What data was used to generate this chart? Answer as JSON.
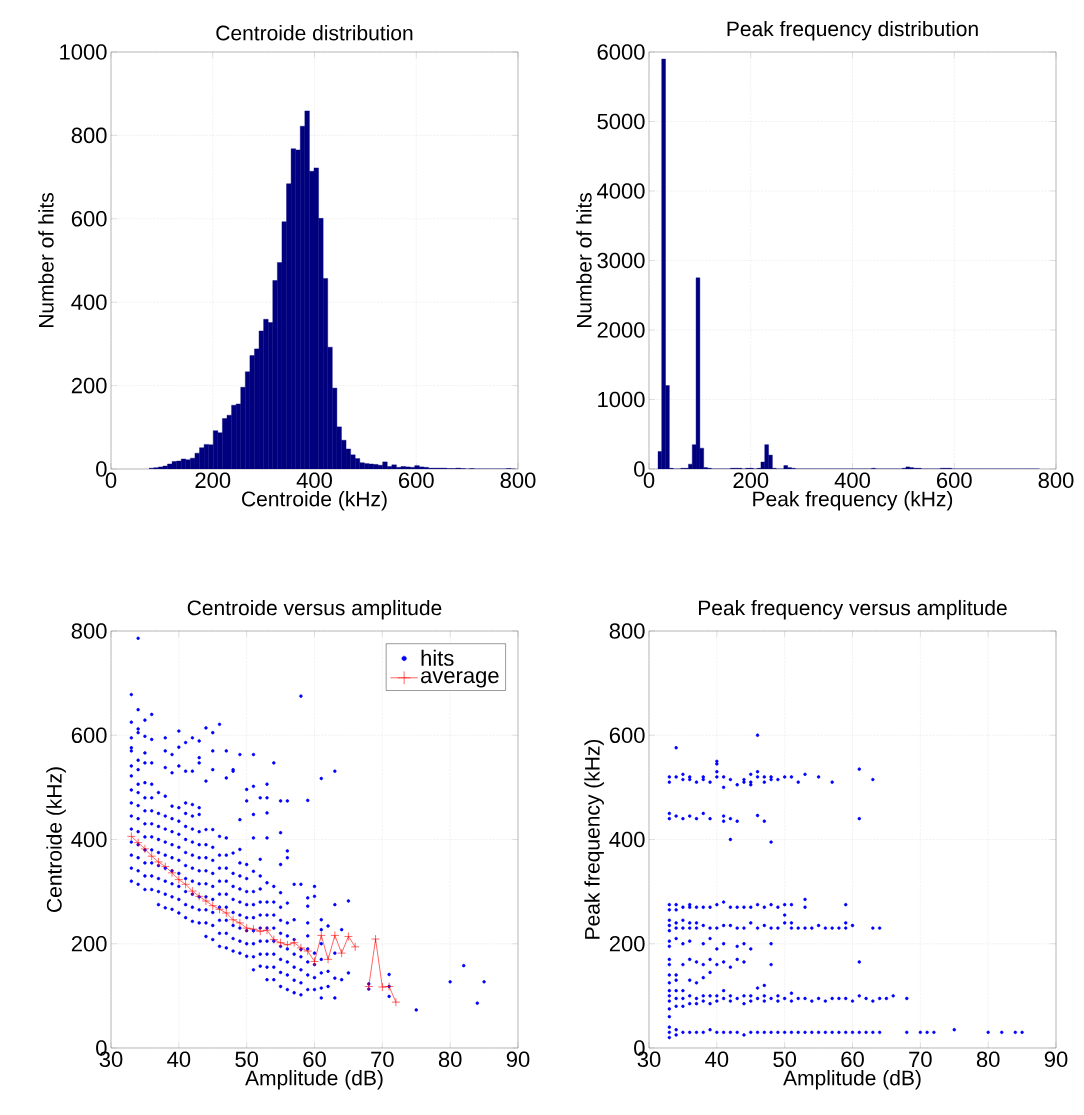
{
  "chart_data": [
    {
      "type": "histogram",
      "title": "Centroide distribution",
      "xlabel": "Centroide (kHz)",
      "ylabel": "Number of hits",
      "color": "#00007f",
      "bins": [
        75,
        84,
        93,
        102,
        111,
        120,
        129,
        138,
        147,
        156,
        165,
        174,
        183,
        192,
        201,
        210,
        219,
        228,
        237,
        246,
        255,
        264,
        273,
        282,
        291,
        300,
        309,
        318,
        327,
        336,
        345,
        354,
        363,
        372,
        381,
        390,
        399,
        408,
        417,
        426,
        435,
        444,
        453,
        462,
        471,
        480,
        489,
        498,
        507,
        516,
        525,
        534,
        543,
        552,
        561,
        570,
        579,
        588,
        597,
        606,
        615,
        624,
        633,
        642,
        651,
        660,
        669,
        678,
        687,
        696,
        705,
        714,
        723,
        732,
        741,
        750,
        759,
        768,
        777,
        786,
        795
      ],
      "values": [
        2,
        3,
        5,
        7,
        12,
        18,
        19,
        24,
        22,
        26,
        38,
        51,
        59,
        58,
        92,
        87,
        121,
        129,
        153,
        156,
        196,
        233,
        272,
        288,
        331,
        359,
        351,
        452,
        495,
        593,
        684,
        768,
        765,
        822,
        859,
        714,
        722,
        601,
        457,
        292,
        194,
        101,
        69,
        48,
        34,
        25,
        15,
        13,
        12,
        11,
        9,
        17,
        6,
        10,
        4,
        6,
        5,
        4,
        8,
        5,
        4,
        2,
        2,
        2,
        2,
        1,
        1,
        2,
        1,
        0,
        1,
        0,
        0,
        0,
        0,
        0,
        0,
        0,
        1,
        0
      ],
      "xlim": [
        0,
        800
      ],
      "ylim": [
        0,
        1000
      ],
      "xticks": [
        0,
        200,
        400,
        600,
        800
      ],
      "yticks": [
        0,
        200,
        400,
        600,
        800,
        1000
      ],
      "grid": true
    },
    {
      "type": "histogram",
      "title": "Peak frequency distribution",
      "xlabel": "Peak frequency (kHz)",
      "ylabel": "Number of hits",
      "color": "#00007f",
      "bins": [
        17.5,
        25,
        32.5,
        40,
        47.5,
        55,
        62.5,
        70,
        77.5,
        85,
        92.5,
        100,
        107.5,
        115,
        122.5,
        130,
        137.5,
        145,
        152.5,
        160,
        167.5,
        175,
        182.5,
        190,
        197.5,
        205,
        212.5,
        220,
        227.5,
        235,
        242.5,
        250,
        257.5,
        265,
        272.5,
        280,
        287.5,
        295,
        302.5,
        310,
        317.5,
        325,
        332.5,
        340,
        347.5,
        355,
        362.5,
        370,
        377.5,
        385,
        392.5,
        400,
        407.5,
        415,
        422.5,
        430,
        437.5,
        445,
        452.5,
        460,
        467.5,
        475,
        482.5,
        490,
        497.5,
        505,
        512.5,
        520,
        527.5,
        535,
        542.5,
        550,
        557.5,
        565,
        572.5,
        580,
        587.5,
        595,
        602.5,
        610,
        617.5,
        625,
        632.5,
        640,
        647.5,
        655,
        662.5,
        670,
        677.5,
        685,
        692.5,
        700,
        707.5,
        715,
        722.5,
        730,
        737.5,
        745,
        752.5,
        760,
        767.5
      ],
      "values": [
        250,
        5900,
        1200,
        10,
        0,
        0,
        10,
        10,
        70,
        350,
        2750,
        300,
        20,
        10,
        0,
        0,
        0,
        0,
        0,
        10,
        10,
        10,
        0,
        10,
        10,
        0,
        10,
        100,
        350,
        200,
        10,
        0,
        0,
        50,
        20,
        10,
        0,
        0,
        0,
        0,
        0,
        0,
        0,
        0,
        0,
        0,
        0,
        0,
        0,
        0,
        0,
        0,
        0,
        0,
        0,
        0,
        10,
        0,
        0,
        0,
        0,
        0,
        0,
        0,
        10,
        30,
        20,
        10,
        10,
        0,
        0,
        0,
        0,
        0,
        10,
        10,
        10,
        0,
        0,
        0,
        0,
        0,
        0,
        0,
        0,
        0,
        0,
        0,
        0,
        0,
        0,
        0,
        0,
        0,
        0,
        0,
        0,
        0,
        0,
        0
      ],
      "xlim": [
        0,
        800
      ],
      "ylim": [
        0,
        6000
      ],
      "xticks": [
        0,
        200,
        400,
        600,
        800
      ],
      "yticks": [
        0,
        1000,
        2000,
        3000,
        4000,
        5000,
        6000
      ],
      "grid": true
    },
    {
      "type": "scatter",
      "title": "Centroide versus amplitude",
      "xlabel": "Amplitude (dB)",
      "ylabel": "Centroide (kHz)",
      "xlim": [
        30,
        90
      ],
      "ylim": [
        0,
        800
      ],
      "xticks": [
        30,
        40,
        50,
        60,
        70,
        80,
        90
      ],
      "yticks": [
        0,
        200,
        400,
        600,
        800
      ],
      "grid": true,
      "legend": "top right",
      "series": [
        {
          "name": "hits",
          "type": "scatter",
          "color": "#0000ff",
          "marker": "circle",
          "x": [
            33,
            33,
            33,
            33,
            33,
            33,
            33,
            33,
            33,
            33,
            33,
            33,
            33,
            33,
            33,
            34,
            34,
            34,
            34,
            34,
            34,
            34,
            34,
            34,
            34,
            34,
            34,
            34,
            34,
            34,
            35,
            35,
            35,
            35,
            35,
            35,
            35,
            35,
            35,
            35,
            35,
            35,
            35,
            36,
            36,
            36,
            36,
            36,
            36,
            36,
            36,
            36,
            36,
            36,
            36,
            37,
            37,
            37,
            37,
            37,
            37,
            37,
            37,
            37,
            38,
            38,
            38,
            38,
            38,
            38,
            38,
            38,
            38,
            38,
            38,
            38,
            39,
            39,
            39,
            39,
            39,
            39,
            39,
            39,
            39,
            39,
            39,
            40,
            40,
            40,
            40,
            40,
            40,
            40,
            40,
            40,
            40,
            40,
            40,
            41,
            41,
            41,
            41,
            41,
            41,
            41,
            41,
            41,
            41,
            41,
            41,
            42,
            42,
            42,
            42,
            42,
            42,
            42,
            42,
            42,
            42,
            42,
            42,
            43,
            43,
            43,
            43,
            43,
            43,
            43,
            43,
            43,
            43,
            43,
            43,
            43,
            44,
            44,
            44,
            44,
            44,
            44,
            44,
            44,
            44,
            44,
            44,
            45,
            45,
            45,
            45,
            45,
            45,
            45,
            45,
            45,
            45,
            45,
            45,
            46,
            46,
            46,
            46,
            46,
            46,
            46,
            46,
            46,
            46,
            47,
            47,
            47,
            47,
            47,
            47,
            47,
            47,
            47,
            47,
            47,
            48,
            48,
            48,
            48,
            48,
            48,
            48,
            48,
            48,
            48,
            49,
            49,
            49,
            49,
            49,
            49,
            49,
            49,
            49,
            49,
            49,
            50,
            50,
            50,
            50,
            50,
            50,
            50,
            50,
            50,
            50,
            51,
            51,
            51,
            51,
            51,
            51,
            51,
            51,
            51,
            51,
            51,
            51,
            52,
            52,
            52,
            52,
            52,
            52,
            52,
            52,
            52,
            52,
            53,
            53,
            53,
            53,
            53,
            53,
            53,
            53,
            53,
            53,
            53,
            53,
            54,
            54,
            54,
            54,
            54,
            54,
            54,
            54,
            54,
            55,
            55,
            55,
            55,
            55,
            55,
            55,
            55,
            55,
            55,
            55,
            56,
            56,
            56,
            56,
            56,
            56,
            56,
            56,
            56,
            56,
            57,
            57,
            57,
            57,
            57,
            57,
            57,
            58,
            58,
            58,
            58,
            58,
            58,
            58,
            59,
            59,
            59,
            59,
            59,
            59,
            59,
            59,
            59,
            60,
            60,
            60,
            60,
            60,
            60,
            61,
            61,
            61,
            61,
            61,
            61,
            61,
            61,
            62,
            62,
            62,
            63,
            63,
            63,
            63,
            63,
            64,
            64,
            65,
            65,
            68,
            68,
            71,
            71,
            71,
            75,
            80,
            82,
            84,
            85
          ],
          "values": [
            320,
            345,
            370,
            395,
            420,
            445,
            470,
            495,
            522,
            541,
            570,
            576,
            595,
            625,
            678,
            314,
            340,
            365,
            390,
            415,
            440,
            465,
            490,
            506,
            534,
            552,
            605,
            612,
            649,
            786,
            304,
            330,
            355,
            380,
            405,
            430,
            455,
            480,
            509,
            547,
            566,
            598,
            629,
            304,
            330,
            355,
            380,
            405,
            430,
            455,
            480,
            506,
            547,
            592,
            640,
            275,
            300,
            325,
            350,
            375,
            400,
            425,
            450,
            490,
            269,
            295,
            320,
            345,
            370,
            395,
            420,
            445,
            483,
            538,
            570,
            595,
            266,
            290,
            315,
            340,
            365,
            390,
            415,
            440,
            464,
            528,
            563,
            259,
            285,
            310,
            335,
            360,
            385,
            410,
            435,
            461,
            541,
            577,
            608,
            250,
            275,
            300,
            325,
            350,
            375,
            400,
            425,
            450,
            470,
            531,
            586,
            243,
            270,
            295,
            320,
            345,
            370,
            395,
            420,
            445,
            467,
            531,
            595,
            240,
            265,
            290,
            315,
            340,
            365,
            390,
            415,
            448,
            461,
            547,
            557,
            589,
            214,
            240,
            265,
            290,
            315,
            340,
            365,
            390,
            419,
            512,
            614,
            208,
            235,
            260,
            285,
            310,
            335,
            360,
            385,
            419,
            534,
            570,
            605,
            195,
            220,
            245,
            270,
            295,
            320,
            345,
            370,
            406,
            621,
            192,
            220,
            245,
            270,
            295,
            320,
            345,
            370,
            403,
            518,
            570,
            186,
            210,
            235,
            260,
            285,
            310,
            335,
            374,
            531,
            534,
            182,
            205,
            230,
            255,
            280,
            305,
            330,
            355,
            381,
            438,
            563,
            176,
            200,
            225,
            250,
            275,
            300,
            325,
            352,
            474,
            496,
            150,
            175,
            200,
            225,
            250,
            275,
            300,
            339,
            403,
            448,
            502,
            563,
            157,
            180,
            205,
            230,
            255,
            280,
            305,
            330,
            362,
            480,
            131,
            155,
            180,
            205,
            230,
            255,
            280,
            317,
            403,
            451,
            480,
            506,
            131,
            155,
            180,
            205,
            230,
            255,
            280,
            310,
            547,
            118,
            145,
            170,
            195,
            220,
            245,
            270,
            298,
            352,
            413,
            474,
            112,
            140,
            165,
            190,
            215,
            240,
            278,
            365,
            378,
            474,
            106,
            130,
            155,
            180,
            208,
            246,
            314,
            102,
            125,
            150,
            175,
            189,
            314,
            675,
            112,
            140,
            165,
            190,
            215,
            240,
            272,
            288,
            475,
            112,
            135,
            160,
            182,
            291,
            310,
            96,
            115,
            144,
            170,
            200,
            227,
            246,
            517,
            118,
            147,
            234,
            96,
            134,
            182,
            275,
            531,
            131,
            227,
            144,
            282,
            113,
            123,
            99,
            118,
            141,
            73,
            127,
            158,
            86,
            127
          ]
        },
        {
          "name": "average",
          "type": "line",
          "color": "#ff0000",
          "marker": "cross",
          "x": [
            33,
            34,
            35,
            36,
            37,
            38,
            39,
            40,
            41,
            42,
            43,
            44,
            45,
            46,
            47,
            48,
            49,
            50,
            51,
            52,
            53,
            54,
            55,
            56,
            57,
            58,
            59,
            60,
            61,
            62,
            63,
            64,
            65,
            66,
            67,
            68,
            69,
            70,
            71,
            72
          ],
          "values": [
            406,
            394,
            382,
            368,
            357,
            348,
            336,
            323,
            314,
            301,
            291,
            282,
            273,
            266,
            259,
            246,
            240,
            230,
            228,
            224,
            226,
            208,
            202,
            198,
            202,
            192,
            186,
            166,
            216,
            170,
            216,
            182,
            214,
            194,
            null,
            118,
            209,
            117,
            118,
            88
          ]
        }
      ]
    },
    {
      "type": "scatter",
      "title": "Peak frequency versus amplitude",
      "xlabel": "Amplitude (dB)",
      "ylabel": "Peak frequency (kHz)",
      "xlim": [
        30,
        90
      ],
      "ylim": [
        0,
        800
      ],
      "xticks": [
        30,
        40,
        50,
        60,
        70,
        80,
        90
      ],
      "yticks": [
        0,
        200,
        400,
        600,
        800
      ],
      "grid": true,
      "series": [
        {
          "type": "scatter",
          "color": "#0000ff",
          "marker": "circle",
          "x": [
            33,
            33,
            33,
            33,
            33,
            33,
            33,
            33,
            33,
            33,
            33,
            33,
            33,
            33,
            33,
            33,
            33,
            33,
            33,
            33,
            33,
            33,
            33,
            34,
            34,
            34,
            34,
            34,
            34,
            34,
            34,
            34,
            34,
            34,
            34,
            34,
            34,
            34,
            35,
            35,
            35,
            35,
            35,
            35,
            35,
            35,
            35,
            35,
            35,
            35,
            36,
            36,
            36,
            36,
            36,
            36,
            36,
            36,
            36,
            36,
            36,
            36,
            36,
            37,
            37,
            37,
            37,
            37,
            37,
            37,
            37,
            37,
            37,
            38,
            38,
            38,
            38,
            38,
            38,
            38,
            38,
            38,
            38,
            38,
            39,
            39,
            39,
            39,
            39,
            39,
            39,
            39,
            39,
            39,
            40,
            40,
            40,
            40,
            40,
            40,
            40,
            40,
            40,
            40,
            40,
            41,
            41,
            41,
            41,
            41,
            41,
            41,
            41,
            41,
            41,
            41,
            42,
            42,
            42,
            42,
            42,
            42,
            42,
            42,
            42,
            43,
            43,
            43,
            43,
            43,
            43,
            43,
            43,
            44,
            44,
            44,
            44,
            44,
            44,
            44,
            44,
            44,
            45,
            45,
            45,
            45,
            45,
            45,
            45,
            45,
            45,
            46,
            46,
            46,
            46,
            46,
            46,
            46,
            46,
            46,
            47,
            47,
            47,
            47,
            47,
            47,
            47,
            47,
            47,
            48,
            48,
            48,
            48,
            48,
            48,
            48,
            48,
            48,
            49,
            49,
            49,
            49,
            49,
            49,
            50,
            50,
            50,
            50,
            50,
            50,
            51,
            51,
            51,
            51,
            51,
            51,
            51,
            52,
            52,
            52,
            52,
            53,
            53,
            53,
            53,
            53,
            53,
            54,
            54,
            54,
            55,
            55,
            55,
            55,
            56,
            56,
            56,
            57,
            57,
            57,
            57,
            58,
            58,
            58,
            59,
            59,
            59,
            59,
            59,
            60,
            60,
            60,
            61,
            61,
            61,
            61,
            61,
            62,
            62,
            63,
            63,
            63,
            63,
            64,
            64,
            64,
            65,
            66,
            68,
            68,
            70,
            71,
            72,
            75,
            80,
            82,
            84,
            85
          ],
          "values": [
            20,
            30,
            40,
            60,
            75,
            90,
            100,
            110,
            125,
            140,
            160,
            170,
            195,
            205,
            225,
            235,
            245,
            265,
            275,
            440,
            450,
            510,
            520,
            25,
            35,
            80,
            95,
            110,
            130,
            140,
            210,
            230,
            240,
            265,
            275,
            445,
            520,
            576,
            30,
            80,
            95,
            110,
            160,
            200,
            230,
            245,
            270,
            440,
            515,
            525,
            30,
            85,
            100,
            130,
            170,
            205,
            230,
            240,
            270,
            275,
            445,
            515,
            520,
            30,
            85,
            95,
            125,
            165,
            230,
            240,
            270,
            440,
            510,
            30,
            90,
            100,
            135,
            160,
            200,
            235,
            270,
            450,
            515,
            520,
            35,
            85,
            100,
            145,
            170,
            210,
            230,
            270,
            440,
            510,
            30,
            90,
            100,
            160,
            190,
            230,
            275,
            520,
            530,
            545,
            550,
            30,
            95,
            110,
            165,
            200,
            235,
            280,
            435,
            445,
            500,
            520,
            30,
            90,
            100,
            155,
            235,
            270,
            400,
            440,
            515,
            30,
            95,
            170,
            195,
            230,
            270,
            435,
            505,
            25,
            85,
            100,
            165,
            200,
            230,
            270,
            510,
            515,
            30,
            90,
            100,
            190,
            240,
            270,
            505,
            510,
            525,
            30,
            95,
            115,
            230,
            275,
            446,
            520,
            530,
            600,
            30,
            90,
            100,
            120,
            235,
            270,
            435,
            510,
            520,
            30,
            95,
            160,
            200,
            230,
            275,
            395,
            515,
            520,
            30,
            90,
            100,
            230,
            270,
            515,
            30,
            95,
            240,
            255,
            275,
            520,
            30,
            90,
            105,
            230,
            240,
            275,
            520,
            30,
            95,
            230,
            510,
            30,
            95,
            230,
            270,
            285,
            525,
            30,
            90,
            230,
            30,
            95,
            235,
            520,
            30,
            90,
            230,
            30,
            95,
            230,
            510,
            30,
            95,
            230,
            30,
            95,
            230,
            240,
            275,
            30,
            90,
            235,
            30,
            100,
            165,
            440,
            535,
            30,
            95,
            30,
            90,
            230,
            515,
            30,
            95,
            230,
            95,
            100,
            30,
            95,
            30,
            30,
            30,
            35,
            30,
            30,
            30,
            30
          ]
        }
      ]
    }
  ]
}
